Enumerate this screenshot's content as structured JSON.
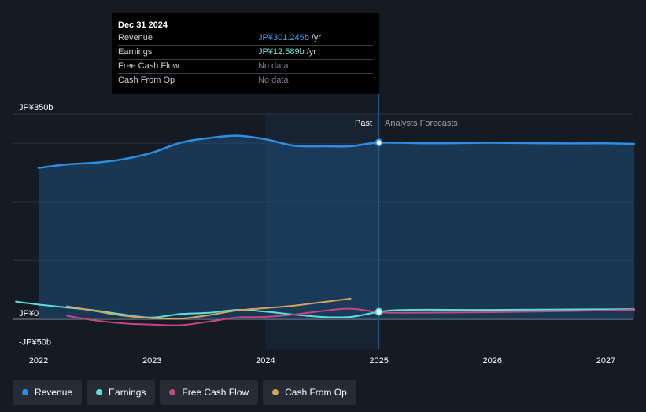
{
  "tooltip": {
    "date": "Dec 31 2024",
    "rows": [
      {
        "label": "Revenue",
        "value": "JP¥301.245b",
        "unit": "/yr"
      },
      {
        "label": "Earnings",
        "value": "JP¥12.589b",
        "unit": "/yr"
      },
      {
        "label": "Free Cash Flow",
        "value": "No data",
        "unit": ""
      },
      {
        "label": "Cash From Op",
        "value": "No data",
        "unit": ""
      }
    ]
  },
  "regions": {
    "past": "Past",
    "forecast": "Analysts Forecasts"
  },
  "legend": [
    {
      "label": "Revenue",
      "color": "#2d8fe3"
    },
    {
      "label": "Earnings",
      "color": "#5ee0d8"
    },
    {
      "label": "Free Cash Flow",
      "color": "#c4487f"
    },
    {
      "label": "Cash From Op",
      "color": "#d6a35c"
    }
  ],
  "chart_data": {
    "type": "line",
    "title": "",
    "y_tick_labels": [
      "JP¥350b",
      "JP¥0",
      "-JP¥50b"
    ],
    "ylim": [
      -50,
      350
    ],
    "x_tick_labels": [
      "2022",
      "2023",
      "2024",
      "2025",
      "2026",
      "2027"
    ],
    "xlim": [
      2021.8,
      2027.25
    ],
    "divider_x": 2025.0,
    "shade_start_x": 2024.0,
    "series": [
      {
        "name": "Revenue",
        "color": "#2d8fe3",
        "x": [
          2022.0,
          2022.25,
          2022.5,
          2022.75,
          2023.0,
          2023.25,
          2023.5,
          2023.75,
          2024.0,
          2024.25,
          2024.5,
          2024.75,
          2025.0,
          2025.5,
          2026.0,
          2026.5,
          2027.0,
          2027.25
        ],
        "values": [
          258,
          264,
          267,
          273,
          284,
          301,
          309,
          313,
          307,
          296,
          295,
          295,
          301,
          300,
          301,
          300,
          300,
          299
        ]
      },
      {
        "name": "Earnings",
        "color": "#5ee0d8",
        "x": [
          2021.8,
          2022.0,
          2022.25,
          2022.5,
          2022.75,
          2023.0,
          2023.25,
          2023.5,
          2023.75,
          2024.0,
          2024.25,
          2024.5,
          2024.75,
          2025.0,
          2025.25,
          2026.0,
          2027.0,
          2027.25
        ],
        "values": [
          30,
          25,
          20,
          15,
          8,
          3,
          9,
          11,
          16,
          13,
          8,
          4,
          4,
          12.6,
          16,
          16,
          17,
          17
        ]
      },
      {
        "name": "Free Cash Flow",
        "color": "#c4487f",
        "x": [
          2022.25,
          2022.5,
          2022.75,
          2023.0,
          2023.25,
          2023.5,
          2023.75,
          2024.0,
          2024.25,
          2024.5,
          2024.75,
          2025.0,
          2025.25,
          2026.0,
          2027.0,
          2027.25
        ],
        "values": [
          6,
          -2,
          -7,
          -9,
          -10,
          -4,
          3,
          4,
          8,
          14,
          18,
          12,
          11,
          12,
          15,
          16
        ]
      },
      {
        "name": "Cash From Op",
        "color": "#d6a35c",
        "x": [
          2022.25,
          2022.5,
          2022.75,
          2023.0,
          2023.25,
          2023.5,
          2023.75,
          2024.0,
          2024.25,
          2024.5,
          2024.75
        ],
        "values": [
          22,
          14,
          6,
          2,
          1,
          7,
          15,
          19,
          23,
          29,
          35
        ]
      }
    ]
  }
}
